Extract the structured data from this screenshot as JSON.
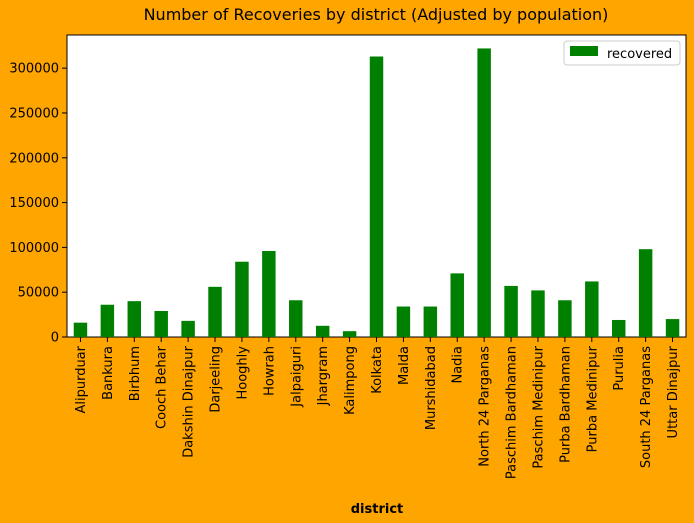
{
  "chart_data": {
    "type": "bar",
    "title": "Number of Recoveries by district (Adjusted by population)",
    "xlabel": "district",
    "ylabel": "",
    "ylim": [
      0,
      337000
    ],
    "yticks": [
      0,
      50000,
      100000,
      150000,
      200000,
      250000,
      300000
    ],
    "categories": [
      "Alipurduar",
      "Bankura",
      "Birbhum",
      "Cooch Behar",
      "Dakshin Dinajpur",
      "Darjeeling",
      "Hooghly",
      "Howrah",
      "Jalpaiguri",
      "Jhargram",
      "Kalimpong",
      "Kolkata",
      "Malda",
      "Murshidabad",
      "Nadia",
      "North 24 Parganas",
      "Paschim Bardhaman",
      "Paschim Medinipur",
      "Purba Bardhaman",
      "Purba Medinipur",
      "Purulia",
      "South 24 Parganas",
      "Uttar Dinajpur"
    ],
    "series": [
      {
        "name": "recovered",
        "color": "#008000",
        "values": [
          16000,
          36000,
          40000,
          29000,
          18000,
          56000,
          84000,
          96000,
          41000,
          12500,
          6500,
          313000,
          34000,
          34000,
          71000,
          322000,
          57000,
          52000,
          41000,
          62000,
          19000,
          98000,
          20000
        ]
      }
    ],
    "legend_position": "top-right",
    "grid": false
  }
}
